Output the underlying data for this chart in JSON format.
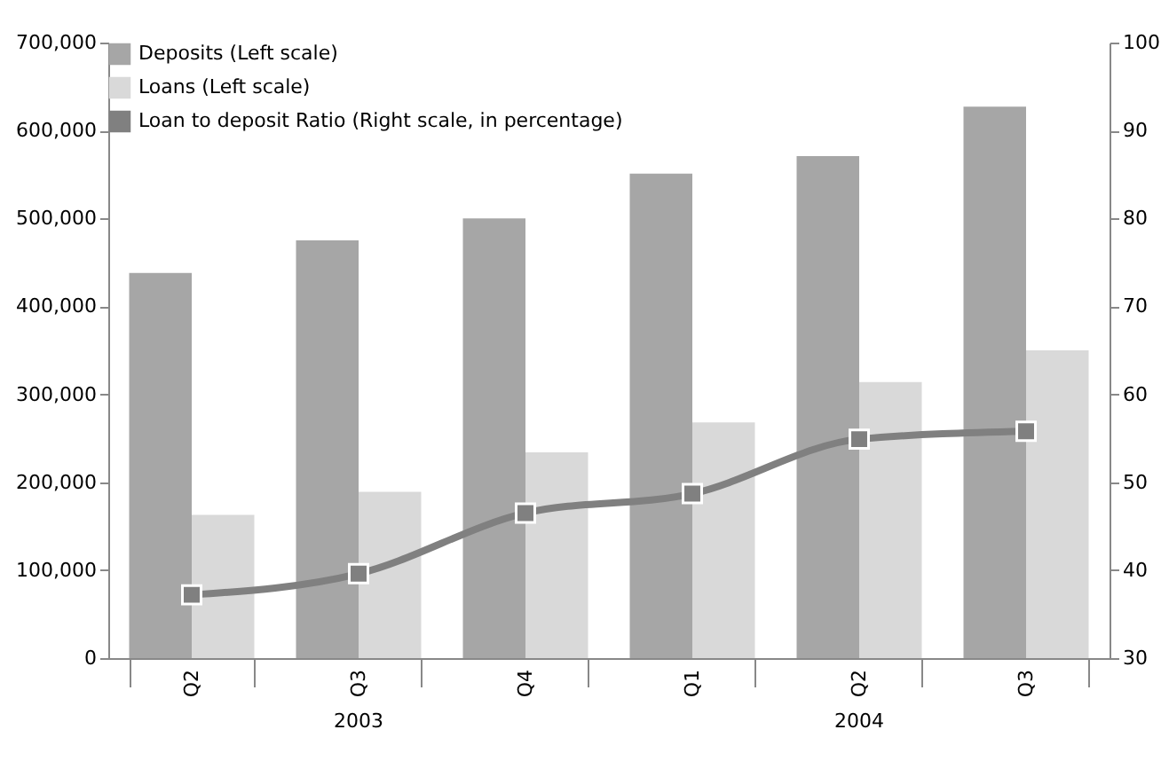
{
  "chart_data": {
    "type": "bar",
    "categories": [
      "Q2",
      "Q3",
      "Q4",
      "Q1",
      "Q2",
      "Q3"
    ],
    "series": [
      {
        "name": "Deposits (Left scale)",
        "color": "#a6a6a6",
        "values": [
          438000,
          475000,
          500000,
          551000,
          571000,
          627000
        ]
      },
      {
        "name": "Loans (Left scale)",
        "color": "#d9d9d9",
        "values": [
          163000,
          189000,
          234000,
          268000,
          314000,
          350000
        ]
      },
      {
        "name": "Loan to deposit Ratio (Right scale, in percentage)",
        "type": "line",
        "axis": "y2",
        "color": "#808080",
        "marker": "square",
        "values": [
          37.2,
          39.6,
          46.5,
          48.7,
          54.9,
          55.8
        ]
      }
    ],
    "ylim": [
      0,
      700000
    ],
    "yticks": [
      {
        "value": 0,
        "label": "0"
      },
      {
        "value": 100000,
        "label": "100,000"
      },
      {
        "value": 200000,
        "label": "200,000"
      },
      {
        "value": 300000,
        "label": "300,000"
      },
      {
        "value": 400000,
        "label": "400,000"
      },
      {
        "value": 500000,
        "label": "500,000"
      },
      {
        "value": 600000,
        "label": "600,000"
      },
      {
        "value": 700000,
        "label": "700,000"
      }
    ],
    "y2lim": [
      30,
      100
    ],
    "y2ticks": [
      30,
      40,
      50,
      60,
      70,
      80,
      90,
      100
    ],
    "annotations": [
      "2003",
      "2004"
    ],
    "legend": "top left",
    "grid": false
  }
}
